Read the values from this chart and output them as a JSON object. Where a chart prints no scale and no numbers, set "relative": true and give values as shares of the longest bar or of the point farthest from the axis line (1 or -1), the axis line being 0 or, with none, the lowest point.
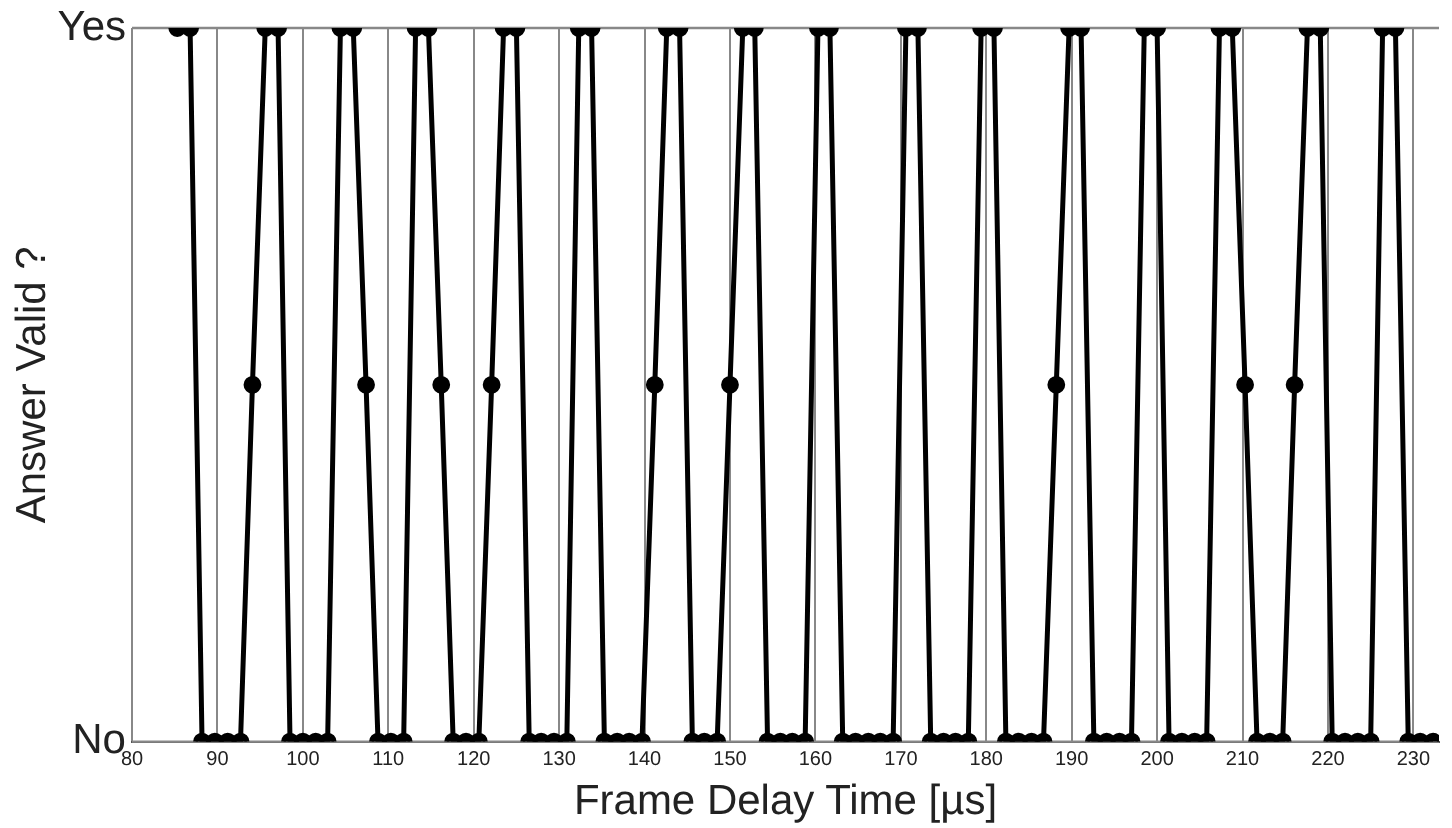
{
  "chart_data": {
    "type": "line",
    "xlabel": "Frame Delay Time [µs]",
    "ylabel": "Answer Valid ?",
    "x": [
      85.3,
      86.8,
      88.2,
      89.7,
      91.2,
      92.7,
      94.1,
      95.6,
      97.1,
      98.5,
      100.0,
      101.5,
      102.9,
      104.4,
      105.9,
      107.4,
      108.8,
      110.3,
      111.8,
      113.2,
      114.7,
      116.2,
      117.6,
      119.1,
      120.6,
      122.1,
      123.5,
      125.0,
      126.5,
      127.9,
      129.4,
      130.9,
      132.3,
      133.8,
      135.3,
      136.8,
      138.2,
      139.7,
      141.2,
      142.6,
      144.1,
      145.6,
      147.0,
      148.5,
      150.0,
      151.5,
      152.9,
      154.4,
      155.9,
      157.3,
      158.8,
      160.3,
      161.7,
      163.2,
      164.7,
      166.2,
      167.6,
      169.1,
      170.6,
      172.0,
      173.5,
      175.0,
      176.4,
      177.9,
      179.4,
      180.9,
      182.3,
      183.8,
      185.3,
      186.7,
      188.2,
      189.7,
      191.1,
      192.6,
      194.1,
      195.6,
      197.0,
      198.5,
      200.0,
      201.4,
      202.9,
      204.4,
      205.8,
      207.3,
      208.8,
      210.3,
      211.7,
      213.2,
      214.7,
      216.1,
      217.6,
      219.1,
      220.5,
      222.0,
      223.5,
      225.0,
      226.4,
      227.9,
      229.4,
      230.8,
      232.3
    ],
    "series": [
      {
        "color": "#000000",
        "values": [
          1,
          1,
          0,
          0,
          0,
          0,
          0.5,
          1,
          1,
          0,
          0,
          0,
          0,
          1,
          1,
          0.5,
          0,
          0,
          0,
          1,
          1,
          0.5,
          0,
          0,
          0,
          0.5,
          1,
          1,
          0,
          0,
          0,
          0,
          1,
          1,
          0,
          0,
          0,
          0,
          0.5,
          1,
          1,
          0,
          0,
          0,
          0.5,
          1,
          1,
          0,
          0,
          0,
          0,
          1,
          1,
          0,
          0,
          0,
          0,
          0,
          1,
          1,
          0,
          0,
          0,
          0,
          1,
          1,
          0,
          0,
          0,
          0,
          0.5,
          1,
          1,
          0,
          0,
          0,
          0,
          1,
          1,
          0,
          0,
          0,
          0,
          1,
          1,
          0.5,
          0,
          0,
          0,
          0.5,
          1,
          1,
          0,
          0,
          0,
          0,
          1,
          1,
          0,
          0,
          0
        ]
      }
    ],
    "xlim": [
      80,
      233
    ],
    "xticks": [
      80,
      90,
      100,
      110,
      120,
      130,
      140,
      150,
      160,
      170,
      180,
      190,
      200,
      210,
      220,
      230
    ],
    "relative": true,
    "ref_lines": [
      {
        "axis": "y",
        "value": 1,
        "label": "Yes",
        "color": "#888888"
      },
      {
        "axis": "y",
        "value": 0,
        "label": "No",
        "color": "#888888"
      }
    ],
    "grid": "x",
    "legend": false,
    "marker": "circle",
    "line_style": "solid"
  }
}
